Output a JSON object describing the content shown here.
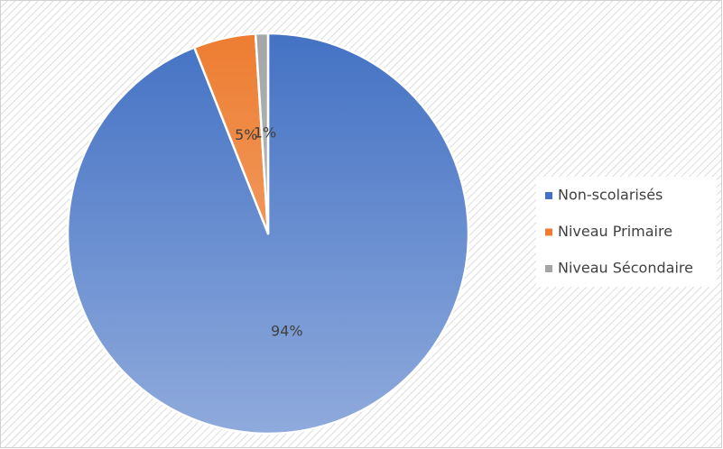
{
  "chart_data": {
    "type": "pie",
    "categories": [
      "Non-scolarisés",
      "Niveau Primaire",
      "Niveau Sécondaire"
    ],
    "values": [
      94,
      5,
      1
    ],
    "value_labels": [
      "94%",
      "5%",
      "1%"
    ],
    "colors": [
      "#4472c4",
      "#ed7d31",
      "#a5a5a5"
    ],
    "legend": "right"
  }
}
